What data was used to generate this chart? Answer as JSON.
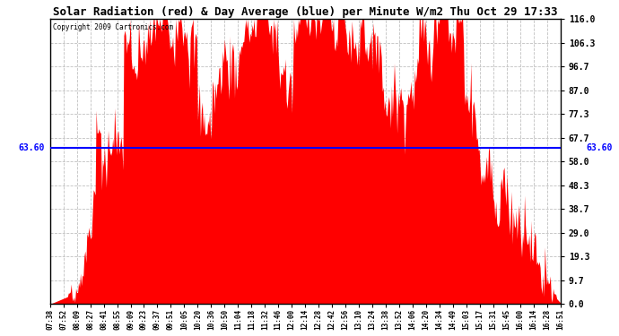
{
  "title": "Solar Radiation (red) & Day Average (blue) per Minute W/m2 Thu Oct 29 17:33",
  "copyright": "Copyright 2009 Cartronics.com",
  "avg_value": 63.6,
  "avg_label": "63.60",
  "y_ticks": [
    0.0,
    9.7,
    19.3,
    29.0,
    38.7,
    48.3,
    58.0,
    67.7,
    77.3,
    87.0,
    96.7,
    106.3,
    116.0
  ],
  "ymin": 0.0,
  "ymax": 116.0,
  "fill_color": "#FF0000",
  "line_color": "#0000FF",
  "bg_color": "#FFFFFF",
  "grid_color": "#C0C0C0",
  "x_labels": [
    "07:38",
    "07:52",
    "08:09",
    "08:27",
    "08:41",
    "08:55",
    "09:09",
    "09:23",
    "09:37",
    "09:51",
    "10:05",
    "10:20",
    "10:36",
    "10:50",
    "11:04",
    "11:18",
    "11:32",
    "11:46",
    "12:00",
    "12:14",
    "12:28",
    "12:42",
    "12:56",
    "13:10",
    "13:24",
    "13:38",
    "13:52",
    "14:06",
    "14:20",
    "14:34",
    "14:49",
    "15:03",
    "15:17",
    "15:31",
    "15:45",
    "16:00",
    "16:14",
    "16:28",
    "16:51"
  ]
}
